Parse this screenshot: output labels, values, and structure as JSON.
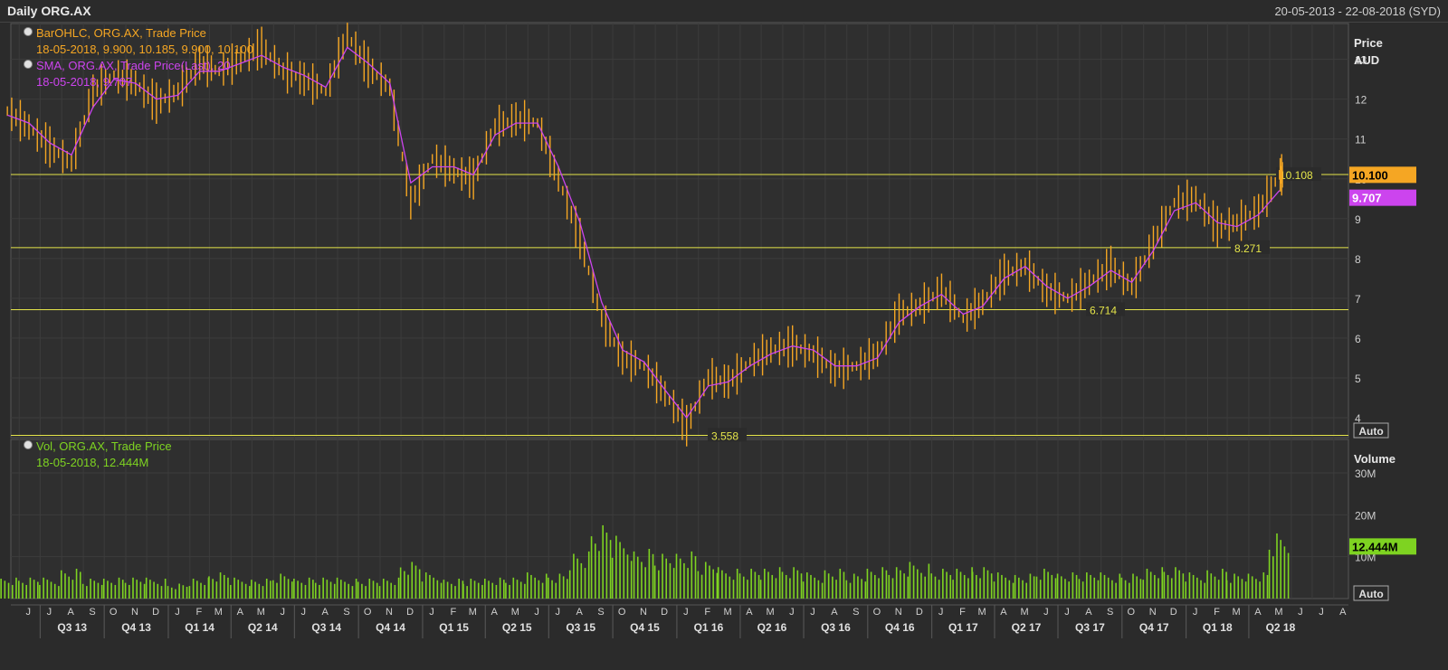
{
  "header": {
    "title": "Daily ORG.AX",
    "range": "20-05-2013 - 22-08-2018 (SYD)"
  },
  "legend": {
    "ohlc_name": "BarOHLC, ORG.AX, Trade Price",
    "ohlc_values": "18-05-2018, 9.900, 10.185, 9.900, 10.100",
    "sma_name": "SMA, ORG.AX, Trade Price(Last),  20",
    "sma_values": "18-05-2018, 9.707",
    "vol_name": "Vol, ORG.AX, Trade Price",
    "vol_values": "18-05-2018, 12.444M"
  },
  "price_axis": {
    "title1": "Price",
    "title2": "AUD",
    "auto": "Auto",
    "last_price": "10.100",
    "last_sma": "9.707"
  },
  "volume_axis": {
    "title": "Volume",
    "auto": "Auto",
    "last_volume": "12.444M"
  },
  "levels": [
    {
      "value": 10.108,
      "label": "10.108"
    },
    {
      "value": 8.271,
      "label": "8.271"
    },
    {
      "value": 6.714,
      "label": "6.714"
    },
    {
      "value": 3.558,
      "label": "3.558"
    }
  ],
  "colors": {
    "price": "#f5a623",
    "sma": "#cc44ee",
    "volume": "#7ed321",
    "level": "#e5e54a",
    "grid": "#3c3c3c",
    "background": "#2b2b2b"
  },
  "chart_data": {
    "type": "line",
    "title": "Daily ORG.AX",
    "x_range": [
      "2013-05-20",
      "2018-08-22"
    ],
    "ylim": [
      3.5,
      13.9
    ],
    "y_ticks": [
      4,
      5,
      6,
      7,
      8,
      9,
      10,
      11,
      12,
      13
    ],
    "volume_ylim": [
      0,
      38
    ],
    "volume_ticks": [
      {
        "value": 10,
        "label": "10M"
      },
      {
        "value": 20,
        "label": "20M"
      },
      {
        "value": 30,
        "label": "30M"
      }
    ],
    "month_labels": [
      "J",
      "J",
      "A",
      "S",
      "O",
      "N",
      "D",
      "J",
      "F",
      "M",
      "A",
      "M",
      "J",
      "J",
      "A",
      "S",
      "O",
      "N",
      "D",
      "J",
      "F",
      "M",
      "A",
      "M",
      "J",
      "J",
      "A",
      "S",
      "O",
      "N",
      "D",
      "J",
      "F",
      "M",
      "A",
      "M",
      "J",
      "J",
      "A",
      "S",
      "O",
      "N",
      "D",
      "J",
      "F",
      "M",
      "A",
      "M",
      "J",
      "J",
      "A",
      "S",
      "O",
      "N",
      "D",
      "J",
      "F",
      "M",
      "A",
      "M",
      "J",
      "J",
      "A",
      "S",
      "O",
      "N",
      "D",
      "J",
      "F",
      "M",
      "A",
      "M",
      "J",
      "J",
      "A"
    ],
    "quarter_labels": [
      "Q3 13",
      "Q4 13",
      "Q1 14",
      "Q2 14",
      "Q3 14",
      "Q4 14",
      "Q1 15",
      "Q2 15",
      "Q3 15",
      "Q4 15",
      "Q1 16",
      "Q2 16",
      "Q3 16",
      "Q4 16",
      "Q1 17",
      "Q2 17",
      "Q3 17",
      "Q4 17",
      "Q1 18",
      "Q2 18"
    ],
    "series": [
      {
        "name": "BarOHLC, ORG.AX, Trade Price",
        "x": [
          "2013-05",
          "2013-06",
          "2013-07",
          "2013-08",
          "2013-09",
          "2013-10",
          "2013-11",
          "2013-12",
          "2014-01",
          "2014-02",
          "2014-03",
          "2014-04",
          "2014-05",
          "2014-06",
          "2014-07",
          "2014-08",
          "2014-09",
          "2014-10",
          "2014-11",
          "2014-12",
          "2015-01",
          "2015-02",
          "2015-03",
          "2015-04",
          "2015-05",
          "2015-06",
          "2015-07",
          "2015-08",
          "2015-09",
          "2015-10",
          "2015-11",
          "2015-12",
          "2016-01",
          "2016-02",
          "2016-03",
          "2016-04",
          "2016-05",
          "2016-06",
          "2016-07",
          "2016-08",
          "2016-09",
          "2016-10",
          "2016-11",
          "2016-12",
          "2017-01",
          "2017-02",
          "2017-03",
          "2017-04",
          "2017-05",
          "2017-06",
          "2017-07",
          "2017-08",
          "2017-09",
          "2017-10",
          "2017-11",
          "2017-12",
          "2018-01",
          "2018-02",
          "2018-03",
          "2018-04",
          "2018-05"
        ],
        "values": [
          11.7,
          11.3,
          10.8,
          10.4,
          12.2,
          12.6,
          12.4,
          11.9,
          12.2,
          12.9,
          12.7,
          13.0,
          13.3,
          12.7,
          12.5,
          12.2,
          13.6,
          12.8,
          12.3,
          9.4,
          10.5,
          10.2,
          10.0,
          11.3,
          11.5,
          11.4,
          10.0,
          8.5,
          6.5,
          5.5,
          5.3,
          4.6,
          3.8,
          5.0,
          4.9,
          5.4,
          5.7,
          5.8,
          5.6,
          5.2,
          5.3,
          5.6,
          6.6,
          6.8,
          7.2,
          6.5,
          6.9,
          7.6,
          7.8,
          7.2,
          7.0,
          7.4,
          7.8,
          7.3,
          8.4,
          9.4,
          9.5,
          8.8,
          8.9,
          9.2,
          10.1
        ]
      },
      {
        "name": "SMA, ORG.AX, Trade Price(Last),  20",
        "x": [
          "2013-05",
          "2013-06",
          "2013-07",
          "2013-08",
          "2013-09",
          "2013-10",
          "2013-11",
          "2013-12",
          "2014-01",
          "2014-02",
          "2014-03",
          "2014-04",
          "2014-05",
          "2014-06",
          "2014-07",
          "2014-08",
          "2014-09",
          "2014-10",
          "2014-11",
          "2014-12",
          "2015-01",
          "2015-02",
          "2015-03",
          "2015-04",
          "2015-05",
          "2015-06",
          "2015-07",
          "2015-08",
          "2015-09",
          "2015-10",
          "2015-11",
          "2015-12",
          "2016-01",
          "2016-02",
          "2016-03",
          "2016-04",
          "2016-05",
          "2016-06",
          "2016-07",
          "2016-08",
          "2016-09",
          "2016-10",
          "2016-11",
          "2016-12",
          "2017-01",
          "2017-02",
          "2017-03",
          "2017-04",
          "2017-05",
          "2017-06",
          "2017-07",
          "2017-08",
          "2017-09",
          "2017-10",
          "2017-11",
          "2017-12",
          "2018-01",
          "2018-02",
          "2018-03",
          "2018-04",
          "2018-05"
        ],
        "values": [
          11.6,
          11.4,
          10.9,
          10.6,
          11.8,
          12.5,
          12.4,
          12.0,
          12.1,
          12.7,
          12.7,
          12.9,
          13.1,
          12.8,
          12.6,
          12.3,
          13.3,
          12.9,
          12.4,
          9.9,
          10.3,
          10.3,
          10.1,
          11.1,
          11.4,
          11.4,
          10.3,
          8.9,
          6.9,
          5.7,
          5.4,
          4.7,
          4.0,
          4.8,
          4.9,
          5.3,
          5.6,
          5.8,
          5.7,
          5.3,
          5.3,
          5.5,
          6.4,
          6.8,
          7.1,
          6.6,
          6.8,
          7.5,
          7.8,
          7.3,
          7.0,
          7.3,
          7.7,
          7.4,
          8.2,
          9.2,
          9.4,
          8.9,
          8.8,
          9.1,
          9.707
        ]
      },
      {
        "name": "Vol, ORG.AX, Trade Price",
        "x": [
          "2013-05",
          "2013-06",
          "2013-07",
          "2013-08",
          "2013-09",
          "2013-10",
          "2013-11",
          "2013-12",
          "2014-01",
          "2014-02",
          "2014-03",
          "2014-04",
          "2014-05",
          "2014-06",
          "2014-07",
          "2014-08",
          "2014-09",
          "2014-10",
          "2014-11",
          "2014-12",
          "2015-01",
          "2015-02",
          "2015-03",
          "2015-04",
          "2015-05",
          "2015-06",
          "2015-07",
          "2015-08",
          "2015-09",
          "2015-10",
          "2015-11",
          "2015-12",
          "2016-01",
          "2016-02",
          "2016-03",
          "2016-04",
          "2016-05",
          "2016-06",
          "2016-07",
          "2016-08",
          "2016-09",
          "2016-10",
          "2016-11",
          "2016-12",
          "2017-01",
          "2017-02",
          "2017-03",
          "2017-04",
          "2017-05",
          "2017-06",
          "2017-07",
          "2017-08",
          "2017-09",
          "2017-10",
          "2017-11",
          "2017-12",
          "2018-01",
          "2018-02",
          "2018-03",
          "2018-04",
          "2018-05"
        ],
        "values": [
          4,
          4,
          4,
          6,
          4,
          4,
          4,
          4,
          3,
          4,
          5,
          4,
          4,
          5,
          4,
          4,
          4,
          4,
          4,
          7,
          5,
          4,
          4,
          4,
          4,
          5,
          5,
          9,
          14,
          12,
          10,
          9,
          9,
          7,
          6,
          6,
          6,
          6,
          5,
          6,
          5,
          6,
          6,
          7,
          6,
          6,
          6,
          5,
          5,
          6,
          5,
          5,
          5,
          5,
          6,
          6,
          5,
          6,
          5,
          5,
          12.444
        ]
      }
    ]
  }
}
